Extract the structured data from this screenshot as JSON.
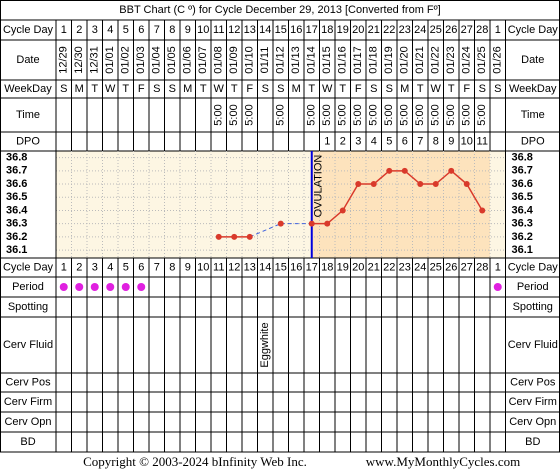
{
  "title": "BBT Chart (C º) for Cycle December 29, 2013  [Converted from Fº]",
  "row_labels": {
    "cycle_day": "Cycle Day",
    "date": "Date",
    "weekday": "WeekDay",
    "time": "Time",
    "dpo": "DPO",
    "period": "Period",
    "spotting": "Spotting",
    "cerv_fluid": "Cerv Fluid",
    "cerv_pos": "Cerv Pos",
    "cerv_firm": "Cerv Firm",
    "cerv_opn": "Cerv Opn",
    "bd": "BD"
  },
  "cycle_days": [
    1,
    2,
    3,
    4,
    5,
    6,
    7,
    8,
    9,
    10,
    11,
    12,
    13,
    14,
    15,
    16,
    17,
    18,
    19,
    20,
    21,
    22,
    23,
    24,
    25,
    26,
    27,
    28,
    1
  ],
  "dates": [
    "12/29",
    "12/30",
    "12/31",
    "01/01",
    "01/02",
    "01/03",
    "01/04",
    "01/05",
    "01/06",
    "01/07",
    "01/08",
    "01/09",
    "01/10",
    "01/11",
    "01/12",
    "01/13",
    "01/14",
    "01/15",
    "01/16",
    "01/17",
    "01/18",
    "01/19",
    "01/20",
    "01/21",
    "01/22",
    "01/23",
    "01/24",
    "01/25",
    "01/26"
  ],
  "weekdays": [
    "S",
    "M",
    "T",
    "W",
    "T",
    "F",
    "S",
    "S",
    "M",
    "T",
    "W",
    "T",
    "F",
    "S",
    "S",
    "M",
    "T",
    "W",
    "T",
    "F",
    "S",
    "S",
    "M",
    "T",
    "W",
    "T",
    "F",
    "S",
    "S"
  ],
  "times": [
    null,
    null,
    null,
    null,
    null,
    null,
    null,
    null,
    null,
    null,
    "5:00",
    "5:00",
    "5:00",
    null,
    "5:00",
    null,
    "5:00",
    "5:00",
    "5:00",
    "5:00",
    "5:00",
    "5:00",
    "5:00",
    "5:00",
    "5:00",
    "5:00",
    "5:00",
    "5:00",
    null
  ],
  "dpo": [
    null,
    null,
    null,
    null,
    null,
    null,
    null,
    null,
    null,
    null,
    null,
    null,
    null,
    null,
    null,
    null,
    null,
    1,
    2,
    3,
    4,
    5,
    6,
    7,
    8,
    9,
    10,
    11,
    null
  ],
  "period": [
    true,
    true,
    true,
    true,
    true,
    true,
    false,
    false,
    false,
    false,
    false,
    false,
    false,
    false,
    false,
    false,
    false,
    false,
    false,
    false,
    false,
    false,
    false,
    false,
    false,
    false,
    false,
    false,
    true
  ],
  "cerv_fluid": [
    null,
    null,
    null,
    null,
    null,
    null,
    null,
    null,
    null,
    null,
    null,
    null,
    null,
    "Eggwhite",
    null,
    null,
    null,
    null,
    null,
    null,
    null,
    null,
    null,
    null,
    null,
    null,
    null,
    null,
    null
  ],
  "chart_data": {
    "type": "line",
    "values": [
      null,
      null,
      null,
      null,
      null,
      null,
      null,
      null,
      null,
      null,
      36.2,
      36.2,
      36.2,
      null,
      36.3,
      null,
      36.3,
      36.3,
      36.4,
      36.6,
      36.6,
      36.7,
      36.7,
      36.6,
      36.6,
      36.7,
      36.6,
      36.4,
      null
    ],
    "color": "#d93a2b",
    "ylim": [
      36.04,
      36.85
    ],
    "yticks": [
      36.8,
      36.7,
      36.6,
      36.5,
      36.4,
      36.3,
      36.2,
      36.1
    ],
    "grid": true,
    "ovulation": {
      "label": "OVULATION",
      "cycle_day": 17,
      "color": "#0000dd"
    }
  },
  "footer": {
    "copyright": "Copyright © 2003-2024 bInfinity Web Inc.",
    "site": "www.MyMonthlyCycles.com"
  }
}
